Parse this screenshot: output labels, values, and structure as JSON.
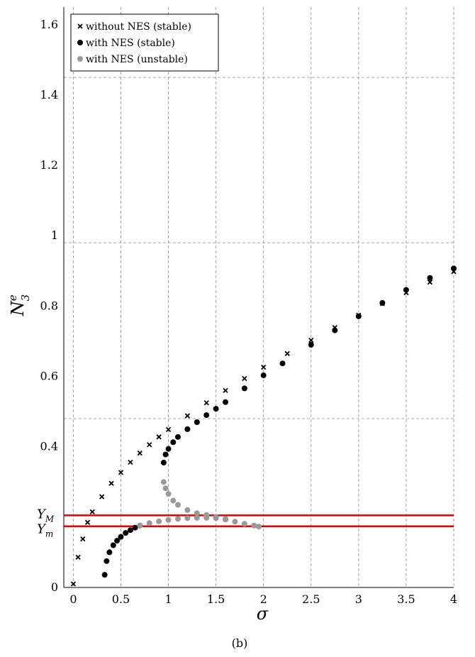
{
  "caption": "(b)",
  "chart_data": {
    "type": "scatter",
    "xlabel": "σ",
    "ylabel_base": "N",
    "ylabel_sub": "3",
    "ylabel_sup": "e",
    "xlim": [
      -0.1,
      4.0
    ],
    "ylim": [
      0,
      1.65
    ],
    "x_ticks": [
      0,
      0.5,
      1,
      1.5,
      2,
      2.5,
      3,
      3.5,
      4
    ],
    "x_tick_labels": [
      "0",
      "0.5",
      "1",
      "1.5",
      "2",
      "2.5",
      "3",
      "3.5",
      "4"
    ],
    "y_ticks": [
      0,
      0.4,
      0.6,
      0.8,
      1,
      1.2,
      1.4,
      1.6
    ],
    "y_tick_labels": [
      "0",
      "0.4",
      "0.6",
      "0.8",
      "1",
      "1.2",
      "1.4",
      "1.6"
    ],
    "grid": true,
    "legend_position": "top-left",
    "legend": [
      {
        "label": "without NES (stable)",
        "marker": "cross",
        "color": "#000000"
      },
      {
        "label": "with NES (stable)",
        "marker": "dot",
        "color": "#000000"
      },
      {
        "label": "with NES (unstable)",
        "marker": "dot",
        "color": "#999999"
      }
    ],
    "reference_lines": [
      {
        "label": "Y",
        "sub": "M",
        "y": 0.205,
        "color": "#e00000"
      },
      {
        "label": "Y",
        "sub": "m",
        "y": 0.174,
        "color": "#e00000"
      }
    ],
    "series": [
      {
        "name": "without NES (stable)",
        "marker": "cross",
        "color": "#000000",
        "x": [
          0.0,
          0.05,
          0.1,
          0.15,
          0.2,
          0.3,
          0.4,
          0.5,
          0.6,
          0.7,
          0.8,
          0.9,
          1.0,
          1.2,
          1.4,
          1.6,
          1.8,
          2.0,
          2.25,
          2.5,
          2.75,
          3.0,
          3.25,
          3.5,
          3.75,
          4.0
        ],
        "y": [
          0.01,
          0.086,
          0.138,
          0.185,
          0.215,
          0.258,
          0.296,
          0.327,
          0.356,
          0.382,
          0.406,
          0.428,
          0.449,
          0.488,
          0.525,
          0.56,
          0.594,
          0.626,
          0.665,
          0.703,
          0.739,
          0.774,
          0.807,
          0.838,
          0.868,
          0.898
        ]
      },
      {
        "name": "with NES (stable) lower",
        "marker": "dot",
        "color": "#000000",
        "x": [
          0.33,
          0.35,
          0.38,
          0.42,
          0.46,
          0.5,
          0.55,
          0.6,
          0.65,
          0.7
        ],
        "y": [
          0.036,
          0.075,
          0.1,
          0.12,
          0.133,
          0.144,
          0.155,
          0.163,
          0.17,
          0.176
        ]
      },
      {
        "name": "with NES (stable) upper",
        "marker": "dot",
        "color": "#000000",
        "x": [
          0.95,
          0.97,
          1.0,
          1.05,
          1.1,
          1.2,
          1.3,
          1.4,
          1.5,
          1.6,
          1.8,
          2.0,
          2.2,
          2.5,
          2.75,
          3.0,
          3.25,
          3.5,
          3.75,
          4.0
        ],
        "y": [
          0.355,
          0.378,
          0.394,
          0.413,
          0.428,
          0.45,
          0.47,
          0.49,
          0.508,
          0.527,
          0.566,
          0.603,
          0.637,
          0.69,
          0.731,
          0.771,
          0.809,
          0.846,
          0.88,
          0.907
        ]
      },
      {
        "name": "with NES (unstable) upper",
        "marker": "dot",
        "color": "#999999",
        "x": [
          0.95,
          0.97,
          1.0,
          1.05,
          1.1,
          1.2,
          1.3,
          1.4,
          1.5,
          1.6,
          1.7,
          1.8,
          1.9,
          1.95
        ],
        "y": [
          0.3,
          0.282,
          0.266,
          0.247,
          0.235,
          0.22,
          0.211,
          0.206,
          0.2,
          0.193,
          0.187,
          0.181,
          0.176,
          0.173
        ]
      },
      {
        "name": "with NES (unstable) lower",
        "marker": "dot",
        "color": "#999999",
        "x": [
          0.7,
          0.8,
          0.9,
          1.0,
          1.1,
          1.2,
          1.3,
          1.4,
          1.5,
          1.6
        ],
        "y": [
          0.176,
          0.183,
          0.188,
          0.192,
          0.195,
          0.197,
          0.198,
          0.198,
          0.197,
          0.195
        ]
      }
    ]
  }
}
